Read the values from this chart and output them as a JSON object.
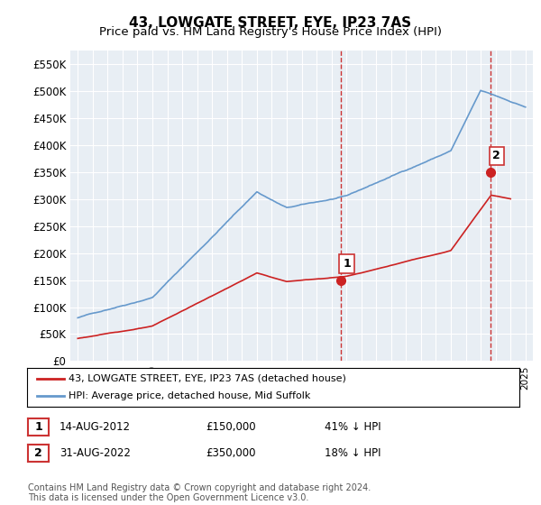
{
  "title": "43, LOWGATE STREET, EYE, IP23 7AS",
  "subtitle": "Price paid vs. HM Land Registry's House Price Index (HPI)",
  "ytick_values": [
    0,
    50000,
    100000,
    150000,
    200000,
    250000,
    300000,
    350000,
    400000,
    450000,
    500000,
    550000
  ],
  "ylim": [
    0,
    575000
  ],
  "hpi_color": "#6699cc",
  "sold_color": "#cc2222",
  "vline_color": "#cc3333",
  "background_color": "#e8eef4",
  "sale1_year": 2012.625,
  "sale1_price": 150000,
  "sale1_label": "1",
  "sale2_year": 2022.667,
  "sale2_price": 350000,
  "sale2_label": "2",
  "legend_line1": "43, LOWGATE STREET, EYE, IP23 7AS (detached house)",
  "legend_line2": "HPI: Average price, detached house, Mid Suffolk",
  "table_row1": [
    "1",
    "14-AUG-2012",
    "£150,000",
    "41% ↓ HPI"
  ],
  "table_row2": [
    "2",
    "31-AUG-2022",
    "£350,000",
    "18% ↓ HPI"
  ],
  "footnote": "Contains HM Land Registry data © Crown copyright and database right 2024.\nThis data is licensed under the Open Government Licence v3.0.",
  "title_fontsize": 11,
  "subtitle_fontsize": 9.5
}
